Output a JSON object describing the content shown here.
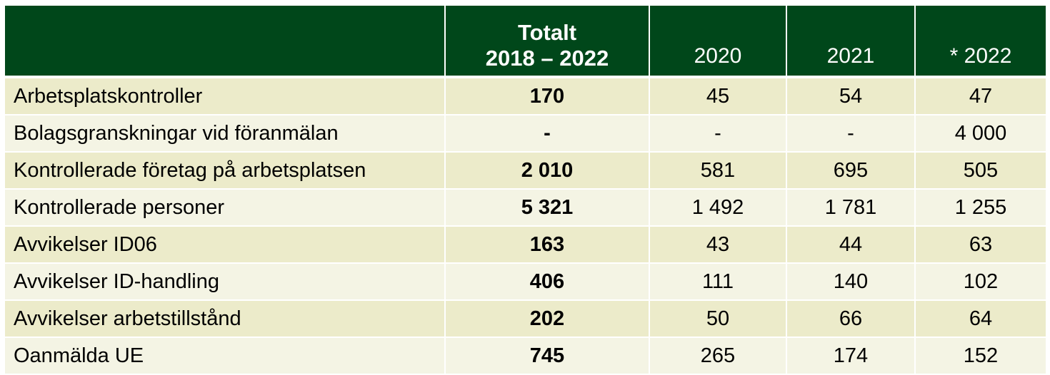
{
  "colors": {
    "header_bg": "#00471a",
    "header_text": "#ffffff",
    "row_odd": "#ecebca",
    "row_even": "#f4f4e4"
  },
  "header": {
    "label": "",
    "total_line1": "Totalt",
    "total_line2": "2018 – 2022",
    "y2020": "2020",
    "y2021": "2021",
    "y2022": "* 2022"
  },
  "rows": [
    {
      "label": "Arbetsplatskontroller",
      "total": "170",
      "y2020": "45",
      "y2021": "54",
      "y2022": "47"
    },
    {
      "label": "Bolagsgranskningar vid föranmälan",
      "total": "-",
      "y2020": "-",
      "y2021": "-",
      "y2022": "4 000"
    },
    {
      "label": "Kontrollerade företag på arbetsplatsen",
      "total": "2 010",
      "y2020": "581",
      "y2021": "695",
      "y2022": "505"
    },
    {
      "label": "Kontrollerade personer",
      "total": "5 321",
      "y2020": "1 492",
      "y2021": "1 781",
      "y2022": "1 255"
    },
    {
      "label": "Avvikelser ID06",
      "total": "163",
      "y2020": "43",
      "y2021": "44",
      "y2022": "63"
    },
    {
      "label": "Avvikelser ID-handling",
      "total": "406",
      "y2020": "111",
      "y2021": "140",
      "y2022": "102"
    },
    {
      "label": "Avvikelser arbetstillstånd",
      "total": "202",
      "y2020": "50",
      "y2021": "66",
      "y2022": "64"
    },
    {
      "label": "Oanmälda UE",
      "total": "745",
      "y2020": "265",
      "y2021": "174",
      "y2022": "152"
    }
  ]
}
